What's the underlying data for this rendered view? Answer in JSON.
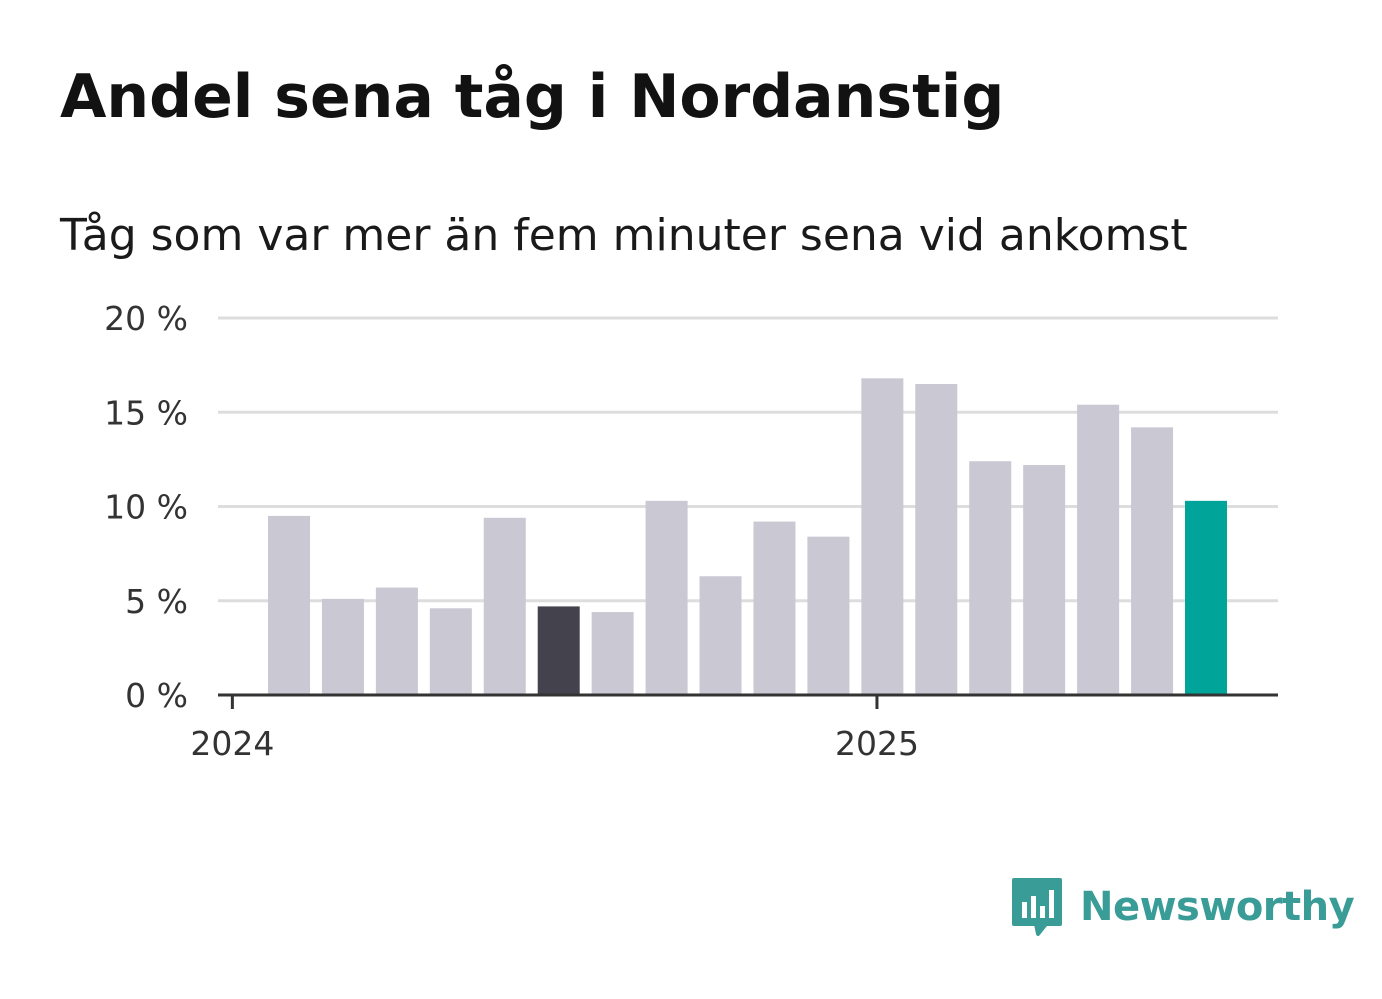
{
  "title": "Andel sena tåg i Nordanstig",
  "subtitle": "Tåg som var mer än fem minuter sena vid ankomst",
  "brand": {
    "name": "Newsworthy",
    "logo_icon": "bar-chart-speech-bubble-icon",
    "color": "#3a9c97"
  },
  "colors": {
    "bar_default": "#c9c8d3",
    "bar_highlight": "#44434d",
    "bar_latest": "#00a499",
    "grid": "#dddddd",
    "axis": "#333333"
  },
  "chart_data": {
    "type": "bar",
    "title": "Andel sena tåg i Nordanstig",
    "subtitle": "Tåg som var mer än fem minuter sena vid ankomst",
    "xlabel": "",
    "ylabel": "",
    "x_tick_labels": [
      "2024",
      "2025"
    ],
    "y_ticks": [
      "0 %",
      "5 %",
      "10 %",
      "15 %",
      "20 %"
    ],
    "ylim": [
      0,
      20
    ],
    "grid": true,
    "legend": "none",
    "values": [
      9.5,
      5.1,
      5.7,
      4.6,
      9.4,
      4.7,
      4.4,
      10.3,
      6.3,
      9.2,
      8.4,
      16.8,
      16.5,
      12.4,
      12.2,
      15.4,
      14.2,
      10.3
    ],
    "highlight_index": 5,
    "latest_index": 17
  }
}
